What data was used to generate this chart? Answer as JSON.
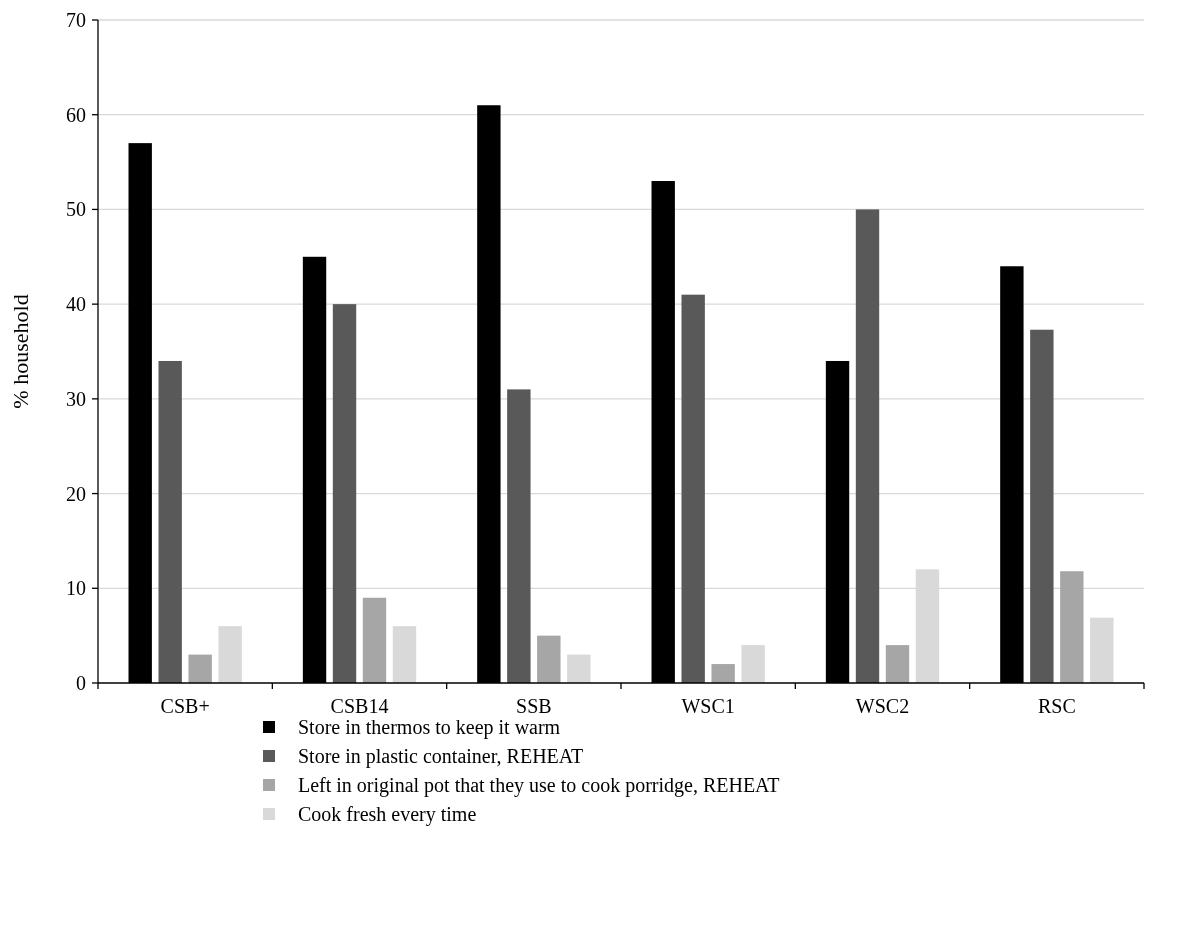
{
  "chart_data": {
    "type": "bar",
    "ylabel": "% household",
    "categories": [
      "CSB+",
      "CSB14",
      "SSB",
      "WSC1",
      "WSC2",
      "RSC"
    ],
    "series": [
      {
        "name": "Store in thermos to keep it warm",
        "color": "#000000",
        "values": [
          57,
          45,
          61,
          53,
          34,
          44
        ]
      },
      {
        "name": "Store in plastic container, REHEAT",
        "color": "#595959",
        "values": [
          34,
          40,
          31,
          41,
          50,
          37.3
        ]
      },
      {
        "name": "Left in original pot that they use to cook porridge, REHEAT",
        "color": "#a6a6a6",
        "values": [
          3,
          9,
          5,
          2,
          4,
          11.8
        ]
      },
      {
        "name": "Cook fresh every time",
        "color": "#d9d9d9",
        "values": [
          6,
          6,
          3,
          4,
          12,
          6.9
        ]
      }
    ],
    "ylim": [
      0,
      70
    ],
    "yticks": [
      0,
      10,
      20,
      30,
      40,
      50,
      60,
      70
    ],
    "grid": "y",
    "legend": "bottom"
  }
}
